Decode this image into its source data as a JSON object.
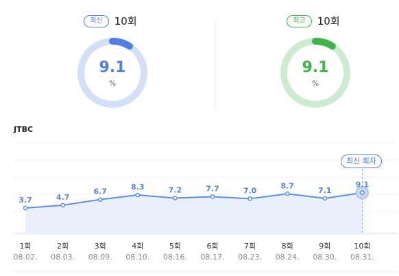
{
  "latest": {
    "badge": "최신",
    "episode": "10회",
    "value": "9.1",
    "unit": "%",
    "ratio": 0.091,
    "color": "#4f7fe0",
    "track": "#d4e0f8"
  },
  "best": {
    "badge": "최고",
    "episode": "10회",
    "value": "9.1",
    "unit": "%",
    "ratio": 0.091,
    "color": "#3fb24a",
    "track": "#cdeccf"
  },
  "channel": "JTBC",
  "latest_tag": "최신 회차",
  "chart_data": {
    "type": "line",
    "categories": [
      "1회",
      "2회",
      "3회",
      "4회",
      "5회",
      "6회",
      "7회",
      "8회",
      "9회",
      "10회"
    ],
    "dates": [
      "08.02.",
      "08.03.",
      "08.09.",
      "08.10.",
      "08.16.",
      "08.17.",
      "08.23.",
      "08.24.",
      "08.30.",
      "08.31."
    ],
    "values": [
      3.7,
      4.7,
      6.7,
      8.3,
      7.2,
      7.7,
      7.0,
      8.7,
      7.1,
      9.1
    ],
    "value_labels": [
      "3.7",
      "4.7",
      "6.7",
      "8.3",
      "7.2",
      "7.7",
      "7.0",
      "8.7",
      "7.1",
      "9.1"
    ],
    "highlight_index": 9,
    "line_color": "#5b8ee6",
    "fill_color": "#e9f0fc",
    "grid": true
  }
}
